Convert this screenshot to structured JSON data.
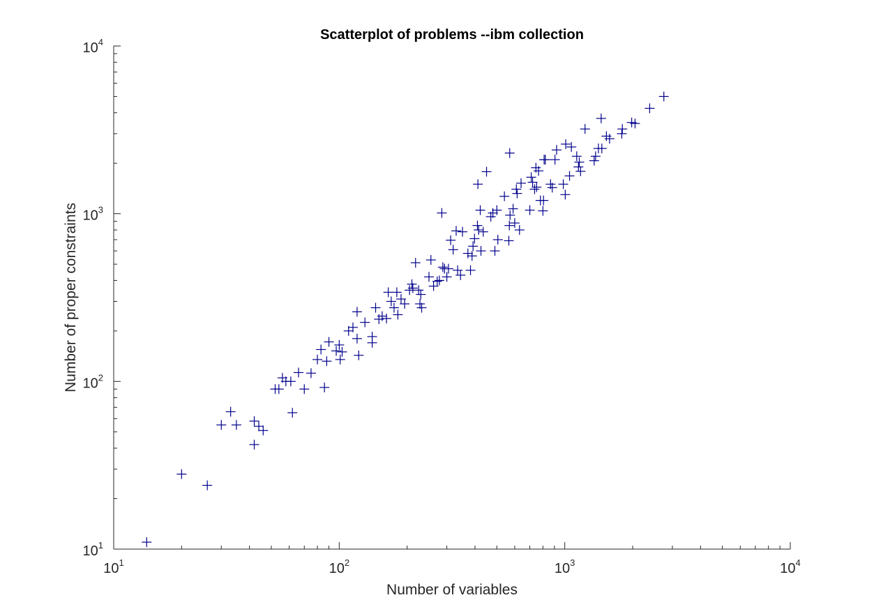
{
  "chart_data": {
    "type": "scatter",
    "title": "Scatterplot of problems --ibm collection",
    "xlabel": "Number of variables",
    "ylabel": "Number of proper constraints",
    "xscale": "log",
    "yscale": "log",
    "xlim": [
      10,
      10000
    ],
    "ylim": [
      10,
      10000
    ],
    "grid": false,
    "marker": "+",
    "marker_color": "#00008b",
    "x_ticks": [
      {
        "base": "10",
        "exp": "1",
        "value": 10
      },
      {
        "base": "10",
        "exp": "2",
        "value": 100
      },
      {
        "base": "10",
        "exp": "3",
        "value": 1000
      },
      {
        "base": "10",
        "exp": "4",
        "value": 10000
      }
    ],
    "y_ticks": [
      {
        "base": "10",
        "exp": "1",
        "value": 10
      },
      {
        "base": "10",
        "exp": "2",
        "value": 100
      },
      {
        "base": "10",
        "exp": "3",
        "value": 1000
      },
      {
        "base": "10",
        "exp": "4",
        "value": 10000
      }
    ],
    "points": [
      [
        14,
        11
      ],
      [
        20,
        28
      ],
      [
        26,
        24
      ],
      [
        30,
        55
      ],
      [
        33,
        66
      ],
      [
        35,
        55
      ],
      [
        42,
        42
      ],
      [
        42,
        58
      ],
      [
        44,
        54
      ],
      [
        46,
        51
      ],
      [
        52,
        90
      ],
      [
        54,
        90
      ],
      [
        56,
        105
      ],
      [
        58,
        100
      ],
      [
        61,
        100
      ],
      [
        62,
        65
      ],
      [
        66,
        113
      ],
      [
        70,
        90
      ],
      [
        75,
        112
      ],
      [
        80,
        135
      ],
      [
        83,
        155
      ],
      [
        86,
        92
      ],
      [
        88,
        132
      ],
      [
        90,
        172
      ],
      [
        97,
        152
      ],
      [
        100,
        165
      ],
      [
        101,
        135
      ],
      [
        103,
        150
      ],
      [
        110,
        200
      ],
      [
        115,
        210
      ],
      [
        120,
        260
      ],
      [
        122,
        143
      ],
      [
        120,
        180
      ],
      [
        130,
        225
      ],
      [
        140,
        170
      ],
      [
        140,
        185
      ],
      [
        145,
        275
      ],
      [
        150,
        235
      ],
      [
        155,
        245
      ],
      [
        162,
        237
      ],
      [
        165,
        340
      ],
      [
        170,
        300
      ],
      [
        175,
        275
      ],
      [
        180,
        340
      ],
      [
        182,
        250
      ],
      [
        188,
        310
      ],
      [
        195,
        290
      ],
      [
        205,
        350
      ],
      [
        210,
        380
      ],
      [
        212,
        360
      ],
      [
        218,
        510
      ],
      [
        225,
        350
      ],
      [
        228,
        290
      ],
      [
        230,
        330
      ],
      [
        232,
        275
      ],
      [
        250,
        420
      ],
      [
        255,
        530
      ],
      [
        262,
        370
      ],
      [
        272,
        395
      ],
      [
        278,
        400
      ],
      [
        285,
        1010
      ],
      [
        288,
        480
      ],
      [
        293,
        470
      ],
      [
        300,
        420
      ],
      [
        305,
        470
      ],
      [
        312,
        695
      ],
      [
        320,
        610
      ],
      [
        330,
        790
      ],
      [
        335,
        460
      ],
      [
        345,
        430
      ],
      [
        352,
        780
      ],
      [
        372,
        580
      ],
      [
        382,
        460
      ],
      [
        388,
        560
      ],
      [
        392,
        640
      ],
      [
        398,
        710
      ],
      [
        410,
        850
      ],
      [
        412,
        1500
      ],
      [
        415,
        800
      ],
      [
        422,
        1050
      ],
      [
        425,
        600
      ],
      [
        435,
        780
      ],
      [
        450,
        1780
      ],
      [
        470,
        960
      ],
      [
        480,
        1010
      ],
      [
        490,
        600
      ],
      [
        500,
        1050
      ],
      [
        505,
        700
      ],
      [
        540,
        1270
      ],
      [
        565,
        690
      ],
      [
        568,
        850
      ],
      [
        570,
        2300
      ],
      [
        572,
        980
      ],
      [
        590,
        1070
      ],
      [
        600,
        880
      ],
      [
        610,
        1400
      ],
      [
        615,
        1320
      ],
      [
        630,
        800
      ],
      [
        640,
        1520
      ],
      [
        700,
        1050
      ],
      [
        710,
        1650
      ],
      [
        720,
        1540
      ],
      [
        735,
        1400
      ],
      [
        745,
        1880
      ],
      [
        750,
        1440
      ],
      [
        765,
        1800
      ],
      [
        780,
        1200
      ],
      [
        800,
        1040
      ],
      [
        805,
        1200
      ],
      [
        810,
        2100
      ],
      [
        820,
        2100
      ],
      [
        865,
        1500
      ],
      [
        880,
        1430
      ],
      [
        905,
        2100
      ],
      [
        920,
        2400
      ],
      [
        985,
        1500
      ],
      [
        1005,
        1300
      ],
      [
        1010,
        2600
      ],
      [
        1050,
        1680
      ],
      [
        1070,
        2500
      ],
      [
        1130,
        2200
      ],
      [
        1150,
        1900
      ],
      [
        1160,
        2030
      ],
      [
        1175,
        1790
      ],
      [
        1230,
        3200
      ],
      [
        1350,
        2070
      ],
      [
        1370,
        2200
      ],
      [
        1410,
        2450
      ],
      [
        1450,
        3700
      ],
      [
        1460,
        2450
      ],
      [
        1530,
        2900
      ],
      [
        1580,
        2800
      ],
      [
        1790,
        3000
      ],
      [
        1800,
        3200
      ],
      [
        1980,
        3500
      ],
      [
        2050,
        3450
      ],
      [
        2380,
        4250
      ],
      [
        2750,
        5000
      ]
    ]
  }
}
